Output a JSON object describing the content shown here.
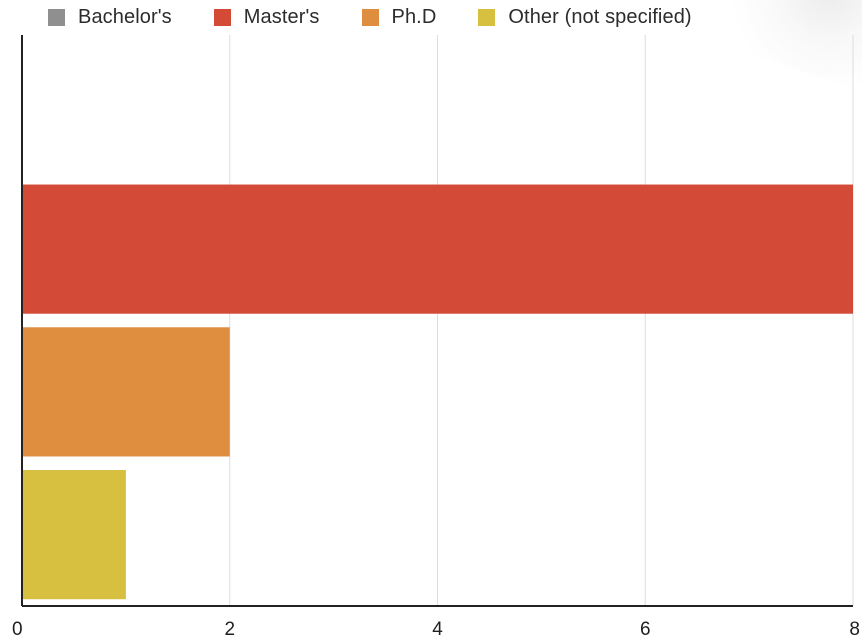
{
  "chart_data": {
    "type": "bar",
    "orientation": "horizontal",
    "series": [
      {
        "name": "Bachelor's",
        "color": "#8f8f8f",
        "value": 0
      },
      {
        "name": "Master's",
        "color": "#d34a36",
        "value": 8
      },
      {
        "name": "Ph.D",
        "color": "#df8d3f",
        "value": 2
      },
      {
        "name": "Other (not specified)",
        "color": "#d7bf3f",
        "value": 1
      }
    ],
    "xlim": [
      0,
      8
    ],
    "xticks": [
      0,
      2,
      4,
      6,
      8
    ],
    "title": "",
    "xlabel": "",
    "ylabel": "",
    "grid": true,
    "legend_position": "top"
  }
}
